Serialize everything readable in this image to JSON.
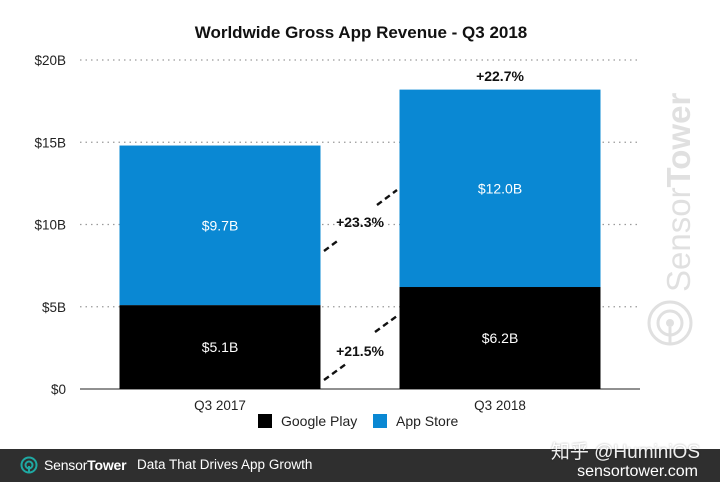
{
  "chart_data": {
    "type": "bar",
    "stacked": true,
    "title": "Worldwide Gross App Revenue - Q3 2018",
    "categories": [
      "Q3 2017",
      "Q3 2018"
    ],
    "series": [
      {
        "name": "Google Play",
        "color": "#000000",
        "values": [
          5.1,
          6.2
        ],
        "labels": [
          "$5.1B",
          "$6.2B"
        ]
      },
      {
        "name": "App Store",
        "color": "#0a88d3",
        "values": [
          9.7,
          12.0
        ],
        "labels": [
          "$9.7B",
          "$12.0B"
        ]
      }
    ],
    "ylim": [
      0,
      20
    ],
    "yticks": [
      0,
      5,
      10,
      15,
      20
    ],
    "ytick_labels": [
      "$0",
      "$5B",
      "$10B",
      "$15B",
      "$20B"
    ],
    "grid": true,
    "legend": "bottom",
    "annotations": {
      "total_growth": "+22.7%",
      "app_store_growth": "+23.3%",
      "google_play_growth": "+21.5%"
    }
  },
  "watermark": {
    "brand_prefix": "Sensor",
    "brand_suffix": "Tower"
  },
  "footer": {
    "brand_prefix": "Sensor",
    "brand_suffix": "Tower",
    "tagline": "Data That Drives App Growth",
    "site": "sensortower.com",
    "overlay_text": "知乎 @HuminiOS"
  }
}
